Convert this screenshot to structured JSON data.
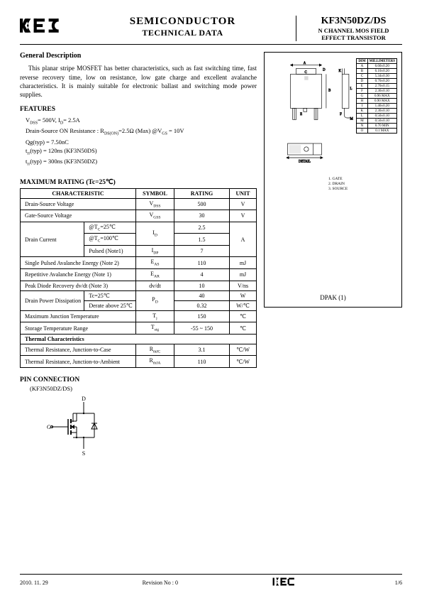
{
  "header": {
    "title1": "SEMICONDUCTOR",
    "title2": "TECHNICAL DATA",
    "part": "KF3N50DZ/DS",
    "sub1": "N CHANNEL MOS FIELD",
    "sub2": "EFFECT TRANSISTOR"
  },
  "general": {
    "heading": "General Description",
    "text": "This planar stripe MOSFET has better characteristics, such as fast switching time, fast reverse recovery time, low on resistance, low gate charge and excellent avalanche characteristics. It is mainly suitable for electronic ballast and switching mode power supplies."
  },
  "features": {
    "heading": "FEATURES",
    "items": [
      "V<sub>DSS</sub>= 500V,  I<sub>D</sub>= 2.5A",
      "Drain-Source ON Resistance : R<sub>DS(ON)</sub>=2.5Ω  (Max)  @V<sub>GS</sub> = 10V",
      "Qg(typ) = 7.50nC",
      "t<sub>rr</sub>(typ) = 120ns (KF3N50DS)",
      "t<sub>rr</sub>(typ) = 300ns (KF3N50DZ)"
    ]
  },
  "rating": {
    "heading": "MAXIMUM RATING  (Tc=25℃)",
    "cols": [
      "CHARACTERISTIC",
      "SYMBOL",
      "RATING",
      "UNIT"
    ],
    "rows": [
      {
        "char": "Drain-Source Voltage",
        "sym": "V<sub>DSS</sub>",
        "rat": "500",
        "unit": "V"
      },
      {
        "char": "Gate-Source Voltage",
        "sym": "V<sub>GSS</sub>",
        "rat": "30",
        "unit": "V"
      }
    ],
    "drain_current": {
      "label": "Drain Current",
      "rows": [
        {
          "cond": "@T<sub>C</sub>=25℃",
          "sym": "I<sub>D</sub>",
          "rat": "2.5",
          "unit": "A"
        },
        {
          "cond": "@T<sub>C</sub>=100℃",
          "sym": "",
          "rat": "1.5",
          "unit": ""
        },
        {
          "cond": "Pulsed (Note1)",
          "sym": "I<sub>DP</sub>",
          "rat": "7",
          "unit": ""
        }
      ]
    },
    "rows2": [
      {
        "char": "Single Pulsed Avalanche Energy (Note 2)",
        "sym": "E<sub>AS</sub>",
        "rat": "110",
        "unit": "mJ"
      },
      {
        "char": "Repetitive Avalanche Energy (Note 1)",
        "sym": "E<sub>AR</sub>",
        "rat": "4",
        "unit": "mJ"
      },
      {
        "char": "Peak Diode Recovery dv/dt (Note 3)",
        "sym": "dv/dt",
        "rat": "10",
        "unit": "V/ns"
      }
    ],
    "power": {
      "label": "Drain Power Dissipation",
      "rows": [
        {
          "cond": "Tc=25℃",
          "sym": "P<sub>D</sub>",
          "rat": "40",
          "unit": "W"
        },
        {
          "cond": "Derate above 25℃",
          "sym": "",
          "rat": "0.32",
          "unit": "W/℃"
        }
      ]
    },
    "rows3": [
      {
        "char": "Maximum Junction Temperature",
        "sym": "T<sub>j</sub>",
        "rat": "150",
        "unit": "℃"
      },
      {
        "char": "Storage Temperature Range",
        "sym": "T<sub>stg</sub>",
        "rat": "-55 ~ 150",
        "unit": "℃"
      }
    ],
    "thermal_h": "Thermal Characteristics",
    "thermal": [
      {
        "char": "Thermal Resistance, Junction-to-Case",
        "sym": "R<sub>thJC</sub>",
        "rat": "3.1",
        "unit": "℃/W"
      },
      {
        "char": "Thermal Resistance,  Junction-to-Ambient",
        "sym": "R<sub>thJA</sub>",
        "rat": "110",
        "unit": "℃/W"
      }
    ]
  },
  "pin": {
    "heading": "PIN CONNECTION",
    "sub": "(KF3N50DZ/DS)",
    "labels": {
      "d": "D",
      "g": "G",
      "s": "S"
    }
  },
  "package": {
    "label": "DPAK (1)",
    "dims": {
      "header": [
        "DIM",
        "MILLIMETERS"
      ],
      "rows": [
        [
          "A",
          "6.60±0.20"
        ],
        [
          "B",
          "6.10±0.20"
        ],
        [
          "C",
          "5.34±0.30"
        ],
        [
          "D",
          "0.70±0.20"
        ],
        [
          "E",
          "2.70±0.15"
        ],
        [
          "F",
          "2.30±0.10"
        ],
        [
          "G",
          "0.96 MAX"
        ],
        [
          "H",
          "0.90 MAX"
        ],
        [
          "I",
          "1.40±0.20"
        ],
        [
          "K",
          "2.30±0.10"
        ],
        [
          "L",
          "0.50±0.10"
        ],
        [
          "M",
          "0.50±0.10"
        ],
        [
          "N",
          "0.70 MIN"
        ],
        [
          "O",
          "0.1 MAX"
        ]
      ]
    },
    "legend": [
      "1. GATE",
      "2. DRAIN",
      "3. SOURCE"
    ]
  },
  "footer": {
    "date": "2010. 11. 29",
    "rev": "Revision No : 0",
    "page": "1/6"
  },
  "colors": {
    "text": "#000000",
    "bg": "#ffffff",
    "rule": "#000000"
  }
}
